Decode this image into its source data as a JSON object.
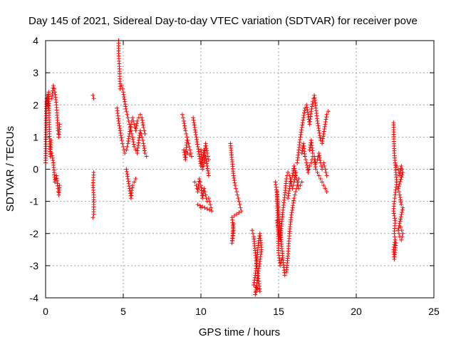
{
  "chart_data": {
    "type": "scatter",
    "title": "Day 145 of 2021, Sidereal Day-to-day VTEC variation (SDTVAR) for receiver pove",
    "xlabel": "GPS time / hours",
    "ylabel": "SDTVAR / TECUs",
    "xlim": [
      0,
      25
    ],
    "ylim": [
      -4,
      4
    ],
    "xticks": [
      0,
      5,
      10,
      15,
      20,
      25
    ],
    "yticks": [
      -4,
      -3,
      -2,
      -1,
      0,
      1,
      2,
      3,
      4
    ],
    "grid": true,
    "marker": "+",
    "series": [
      {
        "name": "SDTVAR",
        "color": "#ff0000",
        "segments": [
          [
            [
              0.0,
              0.2
            ],
            [
              0.05,
              2.1
            ],
            [
              0.1,
              2.3
            ],
            [
              0.15,
              1.9
            ],
            [
              0.2,
              2.4
            ],
            [
              0.25,
              1.1
            ],
            [
              0.3,
              0.4
            ],
            [
              0.35,
              0.9
            ]
          ],
          [
            [
              0.4,
              2.2
            ],
            [
              0.5,
              2.6
            ],
            [
              0.6,
              2.4
            ],
            [
              0.7,
              2.0
            ],
            [
              0.75,
              1.6
            ],
            [
              0.8,
              1.2
            ],
            [
              0.85,
              1.0
            ],
            [
              0.9,
              1.4
            ]
          ],
          [
            [
              0.4,
              0.5
            ],
            [
              0.5,
              0.2
            ],
            [
              0.55,
              -0.1
            ],
            [
              0.6,
              -0.4
            ],
            [
              0.7,
              -0.2
            ],
            [
              0.8,
              -0.6
            ],
            [
              0.85,
              -0.8
            ],
            [
              0.9,
              -0.5
            ]
          ],
          [
            [
              3.05,
              2.3
            ],
            [
              3.1,
              2.2
            ]
          ],
          [
            [
              3.1,
              -0.1
            ],
            [
              3.05,
              -0.5
            ],
            [
              3.1,
              -0.8
            ],
            [
              3.1,
              -1.4
            ],
            [
              3.05,
              -1.5
            ]
          ],
          [
            [
              4.7,
              4.0
            ],
            [
              4.7,
              3.6
            ],
            [
              4.75,
              3.2
            ],
            [
              4.8,
              2.5
            ],
            [
              4.9,
              2.6
            ],
            [
              5.0,
              2.4
            ],
            [
              5.1,
              2.1
            ],
            [
              5.2,
              1.8
            ],
            [
              5.3,
              1.6
            ],
            [
              5.4,
              1.4
            ],
            [
              5.5,
              1.2
            ],
            [
              5.6,
              1.0
            ],
            [
              5.7,
              0.7
            ],
            [
              5.8,
              0.6
            ],
            [
              5.9,
              0.5
            ],
            [
              6.0,
              0.9
            ],
            [
              6.1,
              1.2
            ],
            [
              6.2,
              1.0
            ],
            [
              6.3,
              0.8
            ],
            [
              6.4,
              0.5
            ],
            [
              6.5,
              0.4
            ]
          ],
          [
            [
              4.6,
              1.9
            ],
            [
              4.7,
              1.5
            ],
            [
              4.8,
              1.2
            ],
            [
              4.9,
              0.9
            ],
            [
              5.0,
              0.7
            ],
            [
              5.1,
              0.5
            ],
            [
              5.2,
              0.6
            ],
            [
              5.3,
              0.8
            ],
            [
              5.4,
              1.1
            ],
            [
              5.5,
              1.4
            ],
            [
              5.6,
              1.6
            ],
            [
              5.7,
              1.4
            ],
            [
              5.8,
              1.2
            ],
            [
              5.9,
              1.5
            ],
            [
              6.0,
              1.6
            ],
            [
              6.1,
              1.7
            ],
            [
              6.2,
              1.6
            ],
            [
              6.3,
              1.3
            ],
            [
              6.4,
              1.1
            ]
          ],
          [
            [
              5.2,
              0.0
            ],
            [
              5.3,
              -0.3
            ],
            [
              5.4,
              -0.6
            ],
            [
              5.5,
              -0.9
            ],
            [
              5.6,
              -0.5
            ],
            [
              5.7,
              -0.4
            ],
            [
              5.8,
              -0.3
            ]
          ],
          [
            [
              8.8,
              1.7
            ],
            [
              8.9,
              1.5
            ],
            [
              9.0,
              1.2
            ],
            [
              9.1,
              1.0
            ],
            [
              9.2,
              0.8
            ],
            [
              9.3,
              0.6
            ],
            [
              9.4,
              0.4
            ],
            [
              8.9,
              0.6
            ],
            [
              9.0,
              0.3
            ],
            [
              9.1,
              0.9
            ]
          ],
          [
            [
              9.5,
              1.6
            ],
            [
              9.6,
              1.3
            ],
            [
              9.7,
              1.0
            ],
            [
              9.8,
              0.7
            ],
            [
              9.9,
              0.4
            ],
            [
              10.0,
              0.1
            ],
            [
              10.1,
              0.3
            ],
            [
              10.2,
              0.6
            ],
            [
              10.3,
              0.4
            ],
            [
              10.4,
              0.1
            ],
            [
              10.5,
              -0.2
            ]
          ],
          [
            [
              9.6,
              -0.4
            ],
            [
              9.7,
              -0.5
            ],
            [
              9.8,
              -0.7
            ],
            [
              9.9,
              -0.3
            ],
            [
              10.0,
              -0.5
            ],
            [
              10.1,
              -0.9
            ],
            [
              10.2,
              -0.6
            ],
            [
              10.3,
              -0.8
            ],
            [
              10.4,
              -1.0
            ],
            [
              10.5,
              -0.9
            ],
            [
              10.6,
              -1.1
            ],
            [
              10.7,
              -1.3
            ],
            [
              9.8,
              -1.1
            ],
            [
              10.0,
              -1.2
            ]
          ],
          [
            [
              10.0,
              0.6
            ],
            [
              10.1,
              0.0
            ],
            [
              10.2,
              0.2
            ],
            [
              10.3,
              0.8
            ],
            [
              10.4,
              0.5
            ],
            [
              10.5,
              0.3
            ]
          ],
          [
            [
              11.9,
              0.8
            ],
            [
              12.0,
              0.3
            ],
            [
              12.1,
              -0.2
            ],
            [
              12.2,
              -0.5
            ],
            [
              12.3,
              -0.7
            ],
            [
              12.4,
              -0.9
            ],
            [
              12.5,
              -1.1
            ],
            [
              12.6,
              -1.3
            ],
            [
              12.0,
              -1.5
            ],
            [
              12.1,
              -1.9
            ],
            [
              12.0,
              -2.3
            ],
            [
              12.1,
              -1.7
            ]
          ],
          [
            [
              13.3,
              -1.9
            ],
            [
              13.4,
              -2.1
            ],
            [
              13.5,
              -2.6
            ],
            [
              13.6,
              -3.0
            ],
            [
              13.7,
              -3.4
            ],
            [
              13.8,
              -3.8
            ],
            [
              13.4,
              -3.6
            ],
            [
              13.5,
              -3.3
            ],
            [
              13.6,
              -2.8
            ],
            [
              13.7,
              -2.3
            ],
            [
              13.8,
              -2.0
            ],
            [
              13.9,
              -2.5
            ],
            [
              13.5,
              -3.9
            ],
            [
              13.6,
              -3.7
            ]
          ],
          [
            [
              14.8,
              -0.4
            ],
            [
              14.9,
              -0.8
            ],
            [
              15.0,
              -1.4
            ],
            [
              15.1,
              -1.9
            ],
            [
              15.2,
              -2.4
            ],
            [
              15.3,
              -2.9
            ],
            [
              15.4,
              -3.3
            ],
            [
              15.5,
              -3.2
            ],
            [
              15.6,
              -2.7
            ],
            [
              15.7,
              -2.0
            ],
            [
              15.8,
              -1.5
            ],
            [
              15.9,
              -1.2
            ],
            [
              16.0,
              -0.9
            ],
            [
              16.1,
              -0.7
            ],
            [
              16.2,
              -0.5
            ],
            [
              16.3,
              -0.3
            ]
          ],
          [
            [
              14.9,
              -1.6
            ],
            [
              15.0,
              -1.9
            ],
            [
              15.1,
              -2.2
            ],
            [
              15.2,
              -1.7
            ],
            [
              15.3,
              -1.2
            ],
            [
              15.4,
              -0.8
            ],
            [
              15.5,
              -0.3
            ],
            [
              15.6,
              -0.1
            ],
            [
              15.7,
              -0.2
            ],
            [
              15.8,
              -0.4
            ],
            [
              15.9,
              -0.6
            ],
            [
              16.0,
              -0.4
            ],
            [
              16.1,
              -0.1
            ]
          ],
          [
            [
              14.9,
              -0.7
            ],
            [
              15.0,
              -2.6
            ],
            [
              15.1,
              -3.0
            ],
            [
              15.2,
              -2.8
            ]
          ],
          [
            [
              16.2,
              0.2
            ],
            [
              16.3,
              0.6
            ],
            [
              16.4,
              1.0
            ],
            [
              16.5,
              1.3
            ],
            [
              16.6,
              1.6
            ],
            [
              16.7,
              1.9
            ],
            [
              16.8,
              2.0
            ],
            [
              16.9,
              1.7
            ],
            [
              17.0,
              1.4
            ],
            [
              17.1,
              1.8
            ],
            [
              17.2,
              2.1
            ],
            [
              17.3,
              2.3
            ],
            [
              17.4,
              1.9
            ],
            [
              17.5,
              1.5
            ],
            [
              17.6,
              1.2
            ],
            [
              17.7,
              0.9
            ],
            [
              17.8,
              0.8
            ],
            [
              17.9,
              1.1
            ],
            [
              18.0,
              1.4
            ],
            [
              18.1,
              1.7
            ],
            [
              18.2,
              1.8
            ]
          ],
          [
            [
              16.5,
              0.5
            ],
            [
              16.6,
              0.8
            ],
            [
              16.7,
              0.4
            ],
            [
              16.8,
              0.2
            ],
            [
              16.9,
              -0.1
            ],
            [
              17.0,
              0.1
            ],
            [
              17.1,
              0.2
            ],
            [
              17.2,
              0.4
            ],
            [
              17.3,
              0.3
            ],
            [
              17.4,
              0.0
            ],
            [
              17.5,
              -0.1
            ],
            [
              17.6,
              -0.2
            ],
            [
              17.7,
              -0.3
            ],
            [
              17.8,
              -0.4
            ],
            [
              17.9,
              -0.5
            ],
            [
              18.0,
              -0.6
            ],
            [
              18.1,
              -0.7
            ]
          ],
          [
            [
              15.6,
              -0.9
            ],
            [
              15.7,
              -0.6
            ],
            [
              15.8,
              -0.3
            ],
            [
              15.9,
              -0.2
            ],
            [
              16.0,
              0.1
            ],
            [
              16.1,
              -0.2
            ],
            [
              16.2,
              -0.4
            ],
            [
              16.3,
              -0.6
            ],
            [
              16.4,
              -0.5
            ],
            [
              16.5,
              -0.4
            ]
          ],
          [
            [
              17.0,
              0.6
            ],
            [
              17.1,
              0.9
            ],
            [
              17.2,
              0.5
            ],
            [
              17.3,
              0.4
            ],
            [
              17.4,
              0.2
            ],
            [
              17.5,
              0.3
            ],
            [
              17.6,
              0.5
            ],
            [
              17.7,
              0.2
            ],
            [
              17.8,
              0.0
            ],
            [
              17.9,
              0.2
            ],
            [
              18.0,
              0.0
            ],
            [
              18.1,
              -0.2
            ]
          ],
          [
            [
              22.4,
              1.45
            ],
            [
              22.45,
              0.5
            ],
            [
              22.5,
              0.2
            ],
            [
              22.55,
              -0.1
            ],
            [
              22.6,
              -0.4
            ],
            [
              22.5,
              -0.8
            ],
            [
              22.45,
              -1.0
            ],
            [
              22.4,
              -1.3
            ],
            [
              22.5,
              -1.6
            ],
            [
              22.45,
              -2.0
            ],
            [
              22.5,
              -2.2
            ],
            [
              22.4,
              -2.5
            ],
            [
              22.45,
              -2.8
            ],
            [
              22.55,
              -2.3
            ]
          ],
          [
            [
              22.6,
              0.1
            ],
            [
              22.7,
              0.0
            ],
            [
              22.8,
              -0.2
            ],
            [
              22.9,
              0.1
            ],
            [
              23.0,
              -0.1
            ],
            [
              22.7,
              -0.6
            ],
            [
              22.8,
              -0.8
            ],
            [
              22.9,
              -1.1
            ],
            [
              23.0,
              -1.2
            ],
            [
              22.7,
              -1.9
            ],
            [
              22.8,
              -2.1
            ],
            [
              22.9,
              -2.2
            ],
            [
              23.0,
              -2.0
            ],
            [
              22.85,
              -1.8
            ]
          ]
        ]
      }
    ]
  }
}
